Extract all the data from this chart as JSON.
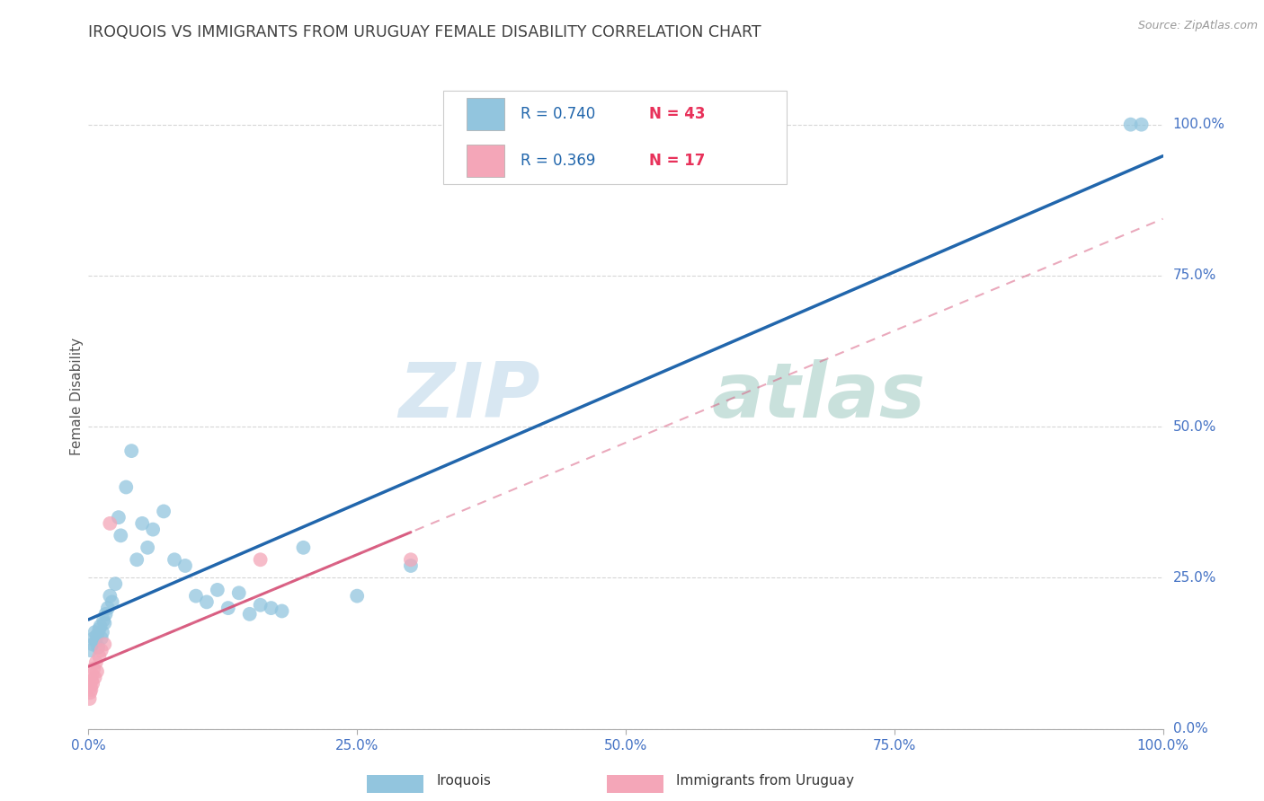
{
  "title": "IROQUOIS VS IMMIGRANTS FROM URUGUAY FEMALE DISABILITY CORRELATION CHART",
  "source": "Source: ZipAtlas.com",
  "ylabel": "Female Disability",
  "legend1_r": "R = 0.740",
  "legend1_n": "N = 43",
  "legend2_r": "R = 0.369",
  "legend2_n": "N = 17",
  "legend_label1": "Iroquois",
  "legend_label2": "Immigrants from Uruguay",
  "watermark_zip": "ZIP",
  "watermark_atlas": "atlas",
  "iroquois_x": [
    0.2,
    0.4,
    0.5,
    0.6,
    0.7,
    0.8,
    0.9,
    1.0,
    1.1,
    1.2,
    1.3,
    1.4,
    1.5,
    1.6,
    1.8,
    2.0,
    2.2,
    2.5,
    2.8,
    3.0,
    3.5,
    4.0,
    4.5,
    5.0,
    5.5,
    6.0,
    7.0,
    8.0,
    9.0,
    10.0,
    11.0,
    12.0,
    13.0,
    14.0,
    15.0,
    16.0,
    17.0,
    18.0,
    20.0,
    25.0,
    30.0,
    97.0,
    98.0
  ],
  "iroquois_y": [
    13.0,
    14.0,
    15.0,
    16.0,
    14.5,
    15.5,
    13.5,
    16.5,
    17.0,
    15.0,
    16.0,
    18.0,
    17.5,
    19.0,
    20.0,
    22.0,
    21.0,
    24.0,
    35.0,
    32.0,
    40.0,
    46.0,
    28.0,
    34.0,
    30.0,
    33.0,
    36.0,
    28.0,
    27.0,
    22.0,
    21.0,
    23.0,
    20.0,
    22.5,
    19.0,
    20.5,
    20.0,
    19.5,
    30.0,
    22.0,
    27.0,
    100.0,
    100.0
  ],
  "uruguay_x": [
    0.1,
    0.15,
    0.2,
    0.25,
    0.3,
    0.35,
    0.4,
    0.5,
    0.6,
    0.7,
    0.8,
    1.0,
    1.2,
    1.5,
    2.0,
    16.0,
    30.0
  ],
  "uruguay_y": [
    5.0,
    6.0,
    7.0,
    6.5,
    8.0,
    9.0,
    7.5,
    10.0,
    8.5,
    11.0,
    9.5,
    12.0,
    13.0,
    14.0,
    34.0,
    28.0,
    28.0
  ],
  "blue_color": "#92c5de",
  "pink_color": "#f4a6b8",
  "blue_line_color": "#2166ac",
  "pink_solid_color": "#d6547a",
  "pink_dashed_color": "#d6547a",
  "title_color": "#404040",
  "axis_label_color": "#4472c4",
  "legend_r_color": "#2166ac",
  "legend_n_color": "#e8315a",
  "background_color": "#ffffff",
  "grid_color": "#cccccc",
  "xmin": 0.0,
  "xmax": 100.0,
  "ymin": 0.0,
  "ymax": 110.0,
  "yticks": [
    0,
    25,
    50,
    75,
    100
  ],
  "xticks": [
    0,
    25,
    50,
    75,
    100
  ]
}
